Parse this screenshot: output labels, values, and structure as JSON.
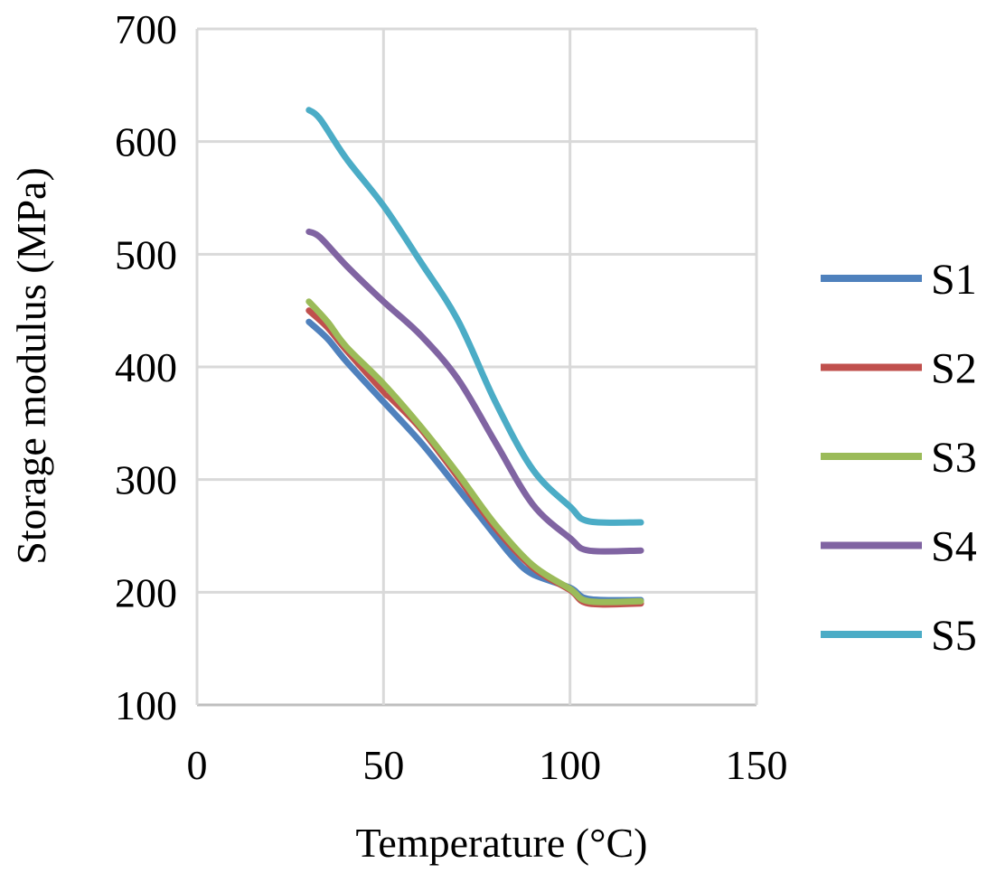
{
  "chart_data": {
    "type": "line",
    "title": "",
    "xlabel": "Temperature (°C)",
    "ylabel": "Storage modulus (MPa)",
    "xlim": [
      0,
      150
    ],
    "ylim": [
      100,
      700
    ],
    "xticks": [
      0,
      50,
      100,
      150
    ],
    "yticks": [
      100,
      200,
      300,
      400,
      500,
      600,
      700
    ],
    "grid": true,
    "legend_position": "right",
    "series": [
      {
        "name": "S1",
        "color": "#4f81bd",
        "x": [
          30,
          35,
          40,
          50,
          60,
          70,
          80,
          85,
          90,
          100,
          105,
          119
        ],
        "y": [
          440,
          425,
          405,
          369,
          333,
          292,
          250,
          230,
          216,
          204,
          194,
          193
        ]
      },
      {
        "name": "S2",
        "color": "#c0504d",
        "x": [
          30,
          35,
          40,
          50,
          52,
          60,
          70,
          80,
          90,
          100,
          105,
          119
        ],
        "y": [
          450,
          435,
          415,
          378,
          372,
          345,
          302,
          257,
          222,
          202,
          190,
          190
        ]
      },
      {
        "name": "S3",
        "color": "#9bbb59",
        "x": [
          30,
          35,
          40,
          50,
          60,
          70,
          80,
          90,
          100,
          105,
          119
        ],
        "y": [
          458,
          440,
          418,
          385,
          347,
          305,
          260,
          224,
          203,
          192,
          192
        ]
      },
      {
        "name": "S4",
        "color": "#8064a2",
        "x": [
          30,
          33,
          40,
          50,
          60,
          70,
          80,
          90,
          100,
          105,
          119
        ],
        "y": [
          520,
          515,
          490,
          458,
          428,
          389,
          333,
          278,
          248,
          237,
          237
        ]
      },
      {
        "name": "S5",
        "color": "#4bacc6",
        "x": [
          30,
          33,
          40,
          50,
          60,
          70,
          80,
          90,
          100,
          105,
          119
        ],
        "y": [
          628,
          620,
          585,
          543,
          493,
          441,
          369,
          309,
          276,
          263,
          262
        ]
      }
    ]
  }
}
